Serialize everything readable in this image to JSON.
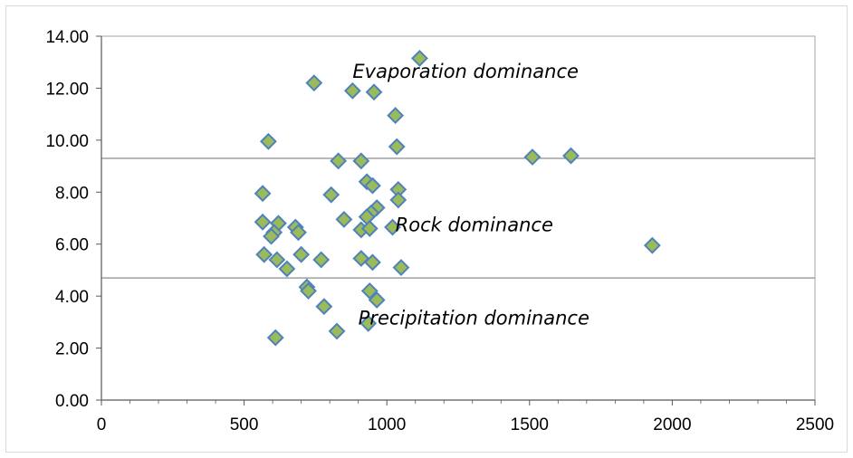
{
  "chart_data": {
    "type": "scatter",
    "title": "",
    "xlabel": "",
    "ylabel": "",
    "xlim": [
      0,
      2500
    ],
    "ylim": [
      0,
      14
    ],
    "x_ticks": [
      "0",
      "500",
      "1000",
      "1500",
      "2000",
      "2500"
    ],
    "y_ticks": [
      "0.00",
      "2.00",
      "4.00",
      "6.00",
      "8.00",
      "10.00",
      "12.00",
      "14.00"
    ],
    "grid": false,
    "legend": "none",
    "marker": {
      "shape": "diamond",
      "fill": "#9BBB59",
      "stroke": "#4F81BD"
    },
    "reference_lines": [
      {
        "y": 9.3,
        "color": "#7f7f7f"
      },
      {
        "y": 4.7,
        "color": "#7f7f7f"
      }
    ],
    "annotations": [
      {
        "text": "Evaporation dominance",
        "x": 880,
        "y": 12.4
      },
      {
        "text": "Rock dominance",
        "x": 1030,
        "y": 6.5
      },
      {
        "text": "Precipitation dominance",
        "x": 900,
        "y": 2.9
      }
    ],
    "points": [
      {
        "x": 1115,
        "y": 13.15
      },
      {
        "x": 745,
        "y": 12.2
      },
      {
        "x": 880,
        "y": 11.9
      },
      {
        "x": 955,
        "y": 11.85
      },
      {
        "x": 1030,
        "y": 10.95
      },
      {
        "x": 585,
        "y": 9.95
      },
      {
        "x": 1035,
        "y": 9.75
      },
      {
        "x": 1510,
        "y": 9.35
      },
      {
        "x": 1645,
        "y": 9.4
      },
      {
        "x": 830,
        "y": 9.2
      },
      {
        "x": 910,
        "y": 9.2
      },
      {
        "x": 930,
        "y": 8.4
      },
      {
        "x": 950,
        "y": 8.25
      },
      {
        "x": 1040,
        "y": 8.1
      },
      {
        "x": 565,
        "y": 7.95
      },
      {
        "x": 805,
        "y": 7.9
      },
      {
        "x": 1040,
        "y": 7.7
      },
      {
        "x": 965,
        "y": 7.4
      },
      {
        "x": 945,
        "y": 7.2
      },
      {
        "x": 930,
        "y": 7.05
      },
      {
        "x": 850,
        "y": 6.95
      },
      {
        "x": 565,
        "y": 6.85
      },
      {
        "x": 620,
        "y": 6.8
      },
      {
        "x": 680,
        "y": 6.65
      },
      {
        "x": 1020,
        "y": 6.65
      },
      {
        "x": 910,
        "y": 6.55
      },
      {
        "x": 690,
        "y": 6.45
      },
      {
        "x": 605,
        "y": 6.45
      },
      {
        "x": 940,
        "y": 6.6
      },
      {
        "x": 595,
        "y": 6.3
      },
      {
        "x": 1930,
        "y": 5.95
      },
      {
        "x": 570,
        "y": 5.6
      },
      {
        "x": 700,
        "y": 5.6
      },
      {
        "x": 615,
        "y": 5.4
      },
      {
        "x": 770,
        "y": 5.4
      },
      {
        "x": 910,
        "y": 5.45
      },
      {
        "x": 950,
        "y": 5.3
      },
      {
        "x": 650,
        "y": 5.05
      },
      {
        "x": 1050,
        "y": 5.1
      },
      {
        "x": 720,
        "y": 4.35
      },
      {
        "x": 725,
        "y": 4.2
      },
      {
        "x": 940,
        "y": 4.2
      },
      {
        "x": 965,
        "y": 3.85
      },
      {
        "x": 780,
        "y": 3.6
      },
      {
        "x": 935,
        "y": 2.95
      },
      {
        "x": 825,
        "y": 2.65
      },
      {
        "x": 610,
        "y": 2.4
      }
    ]
  }
}
